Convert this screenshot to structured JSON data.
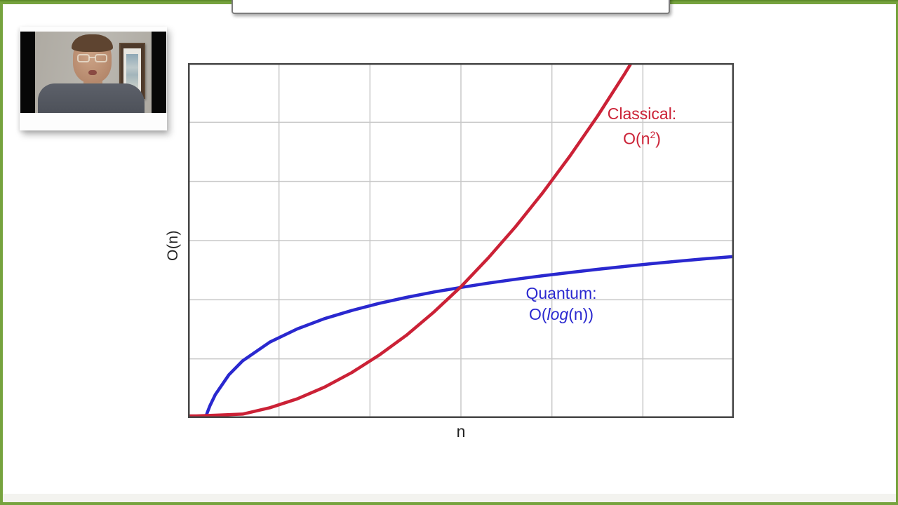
{
  "slide": {
    "background": "#ffffff",
    "border_color": "#76a33e"
  },
  "title_box": {
    "text": ""
  },
  "chart_data": {
    "type": "line",
    "title": "",
    "xlabel": "n",
    "ylabel": "O(n)",
    "xlim": [
      0,
      10
    ],
    "ylim": [
      0,
      100
    ],
    "grid": true,
    "grid_divisions": {
      "x": 6,
      "y": 6
    },
    "grid_color": "#c8c8c8",
    "frame_color": "#474747",
    "legend_position": "none",
    "series": [
      {
        "name": "Classical: O(n^2)",
        "color": "#cb2136",
        "x": [
          0,
          0.15,
          0.5,
          1,
          1.5,
          2,
          2.5,
          3,
          3.5,
          4,
          4.5,
          5,
          5.5,
          6,
          6.5,
          7,
          7.5,
          8,
          8.12
        ],
        "values": [
          0.6,
          0.6,
          0.8,
          1.1,
          2.9,
          5.4,
          8.7,
          12.8,
          17.7,
          23.3,
          29.8,
          37.0,
          45.1,
          53.9,
          63.5,
          73.9,
          85.0,
          97.0,
          100
        ]
      },
      {
        "name": "Quantum: O(log(n))",
        "color": "#2a28cf",
        "x": [
          0.32,
          0.35,
          0.4,
          0.5,
          0.75,
          1,
          1.5,
          2,
          2.5,
          3,
          3.5,
          4,
          4.5,
          5,
          5.5,
          6,
          6.5,
          7,
          7.5,
          8,
          8.5,
          9,
          9.5,
          10
        ],
        "values": [
          0,
          1.4,
          3.4,
          6.6,
          12.2,
          16.1,
          21.4,
          25.1,
          28.0,
          30.3,
          32.3,
          34.0,
          35.5,
          36.8,
          38.0,
          39.1,
          40.1,
          41.0,
          41.9,
          42.7,
          43.5,
          44.2,
          44.9,
          45.5
        ]
      }
    ],
    "annotations": [
      {
        "id": "classical",
        "line1": "Classical:",
        "formula_pre": "O(n",
        "formula_sup": "2",
        "formula_post": ")",
        "color": "#cb2136"
      },
      {
        "id": "quantum",
        "line1": "Quantum:",
        "formula_pre": "O(",
        "formula_italic": "log",
        "formula_post": "(n))",
        "color": "#2a28cf"
      }
    ]
  }
}
